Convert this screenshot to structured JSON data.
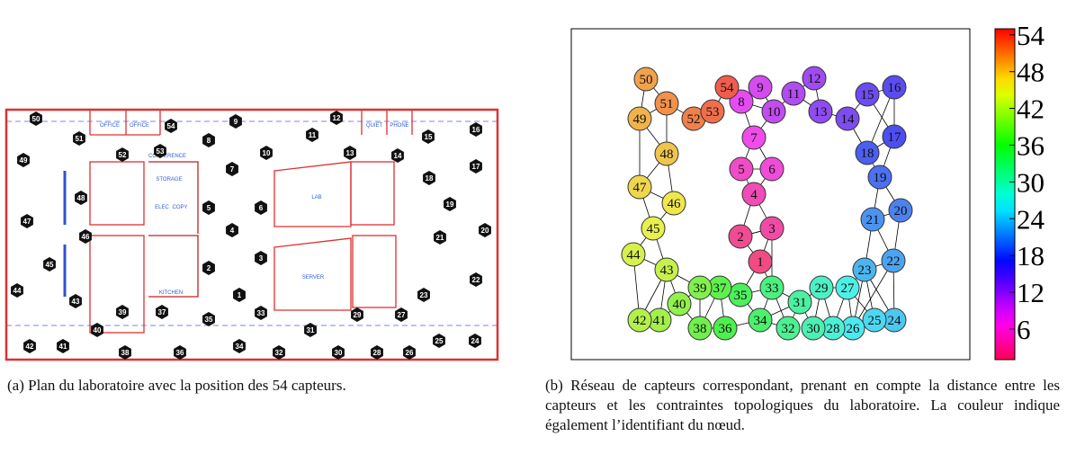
{
  "panel_a": {
    "caption": "(a)  Plan du laboratoire avec la position des 54 capteurs.",
    "room_labels": [
      "OFFICE",
      "OFFICE",
      "CONFERENCE",
      "STORAGE",
      "ELEC",
      "COPY",
      "KITCHEN",
      "LAB",
      "SERVER",
      "QUIET",
      "PHONE"
    ],
    "sensors": [
      1,
      2,
      3,
      4,
      5,
      6,
      7,
      8,
      9,
      10,
      11,
      12,
      13,
      14,
      15,
      16,
      17,
      18,
      19,
      20,
      21,
      22,
      23,
      24,
      25,
      26,
      27,
      28,
      29,
      30,
      31,
      32,
      33,
      34,
      35,
      36,
      37,
      38,
      39,
      40,
      41,
      42,
      43,
      44,
      45,
      46,
      47,
      48,
      49,
      50,
      51,
      52,
      53,
      54
    ]
  },
  "panel_b": {
    "caption": "(b) Réseau de capteurs correspondant, prenant en compte la distance entre les capteurs et les contraintes topologiques du laboratoire. La couleur indique également l’identifiant du nœud.",
    "nodes": [
      1,
      2,
      3,
      4,
      5,
      6,
      7,
      8,
      9,
      10,
      11,
      12,
      13,
      14,
      15,
      16,
      17,
      18,
      19,
      20,
      21,
      22,
      23,
      24,
      25,
      26,
      27,
      28,
      29,
      30,
      31,
      32,
      33,
      34,
      35,
      36,
      37,
      38,
      39,
      40,
      41,
      42,
      43,
      44,
      45,
      46,
      47,
      48,
      49,
      50,
      51,
      52,
      53,
      54
    ],
    "colorbar": {
      "lim": [
        1,
        55
      ],
      "ticks": [
        6,
        12,
        18,
        24,
        30,
        36,
        42,
        48,
        54
      ]
    }
  }
}
